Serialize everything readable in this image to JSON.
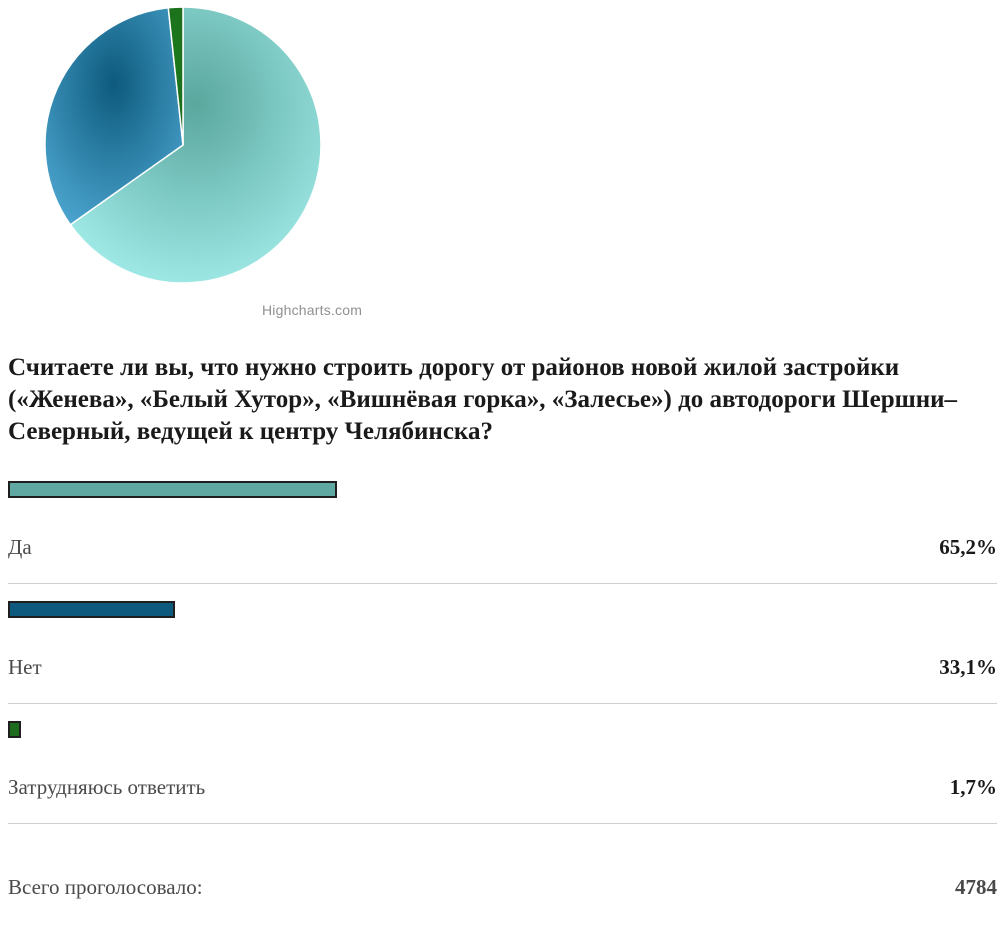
{
  "chart_data": {
    "type": "pie",
    "categories": [
      "Да",
      "Нет",
      "Затрудняюсь ответить"
    ],
    "values": [
      65.2,
      33.1,
      1.7
    ],
    "colors": [
      "#6fbfb5",
      "#0e5a7e",
      "#1d6b1d"
    ],
    "credits": "Highcharts.com"
  },
  "poll": {
    "question": "Считаете ли вы, что нужно строить дорогу от районов новой жилой застройки («Женева», «Белый Хутор», «Вишнёвая горка», «Залесье») до автодороги Шершни–Северный, ведущей к центру Челябинска?",
    "answers": [
      {
        "label": "Да",
        "percent": "65,2%",
        "value": 65.2,
        "color": "#5fa9a2"
      },
      {
        "label": "Нет",
        "percent": "33,1%",
        "value": 33.1,
        "color": "#0e5a7e"
      },
      {
        "label": "Затрудняюсь ответить",
        "percent": "1,7%",
        "value": 1.7,
        "color": "#1d6b1d"
      }
    ],
    "total_label": "Всего проголосовало:",
    "total_value": "4784"
  }
}
